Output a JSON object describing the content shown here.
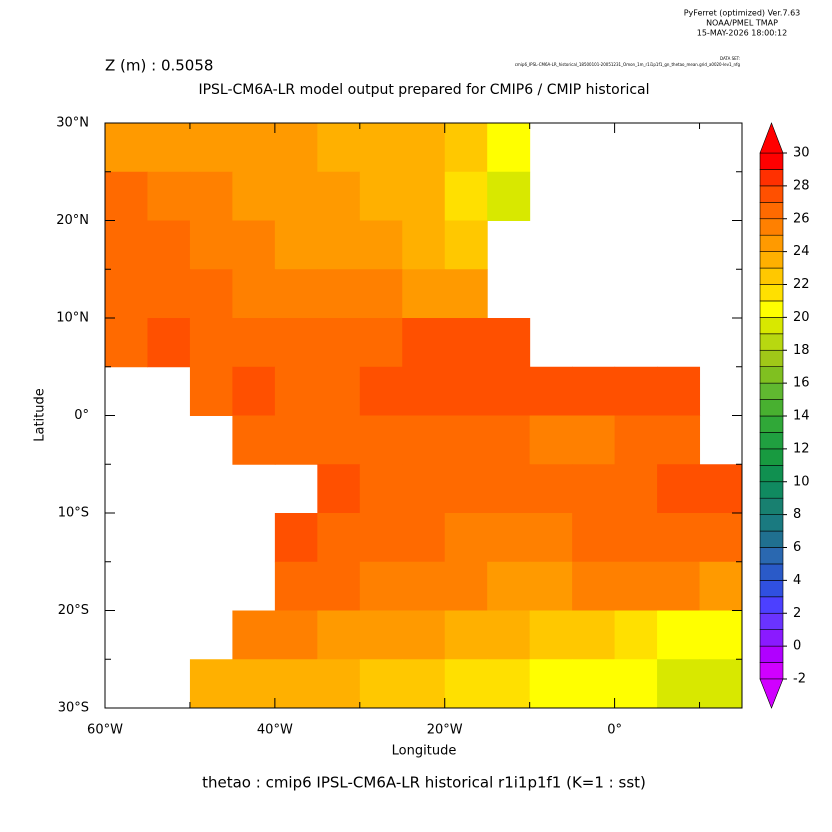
{
  "chart_data": {
    "type": "heatmap",
    "header": [
      "PyFerret (optimized) Ver.7.63",
      "NOAA/PMEL TMAP",
      "15-MAY-2026 18:00:12"
    ],
    "dataset_label": "DATA SET:",
    "dataset": "cmip6_IPSL-CM6A-LR_historical_18500101-20051231_Omon_1m_r1i1p1f1_gn_thetao_mean.grid_a0020-lev1_nfg",
    "depth_label": "Z (m) : 0.5058",
    "title": "IPSL-CM6A-LR model output prepared for CMIP6 / CMIP historical",
    "footer": "thetao : cmip6 IPSL-CM6A-LR historical r1i1p1f1   (K=1 : sst)",
    "x_label": "Longitude",
    "y_label": "Latitude",
    "xlim": [
      -60,
      15
    ],
    "ylim": [
      -30,
      30
    ],
    "xticks": [
      {
        "value": -60,
        "label": "60°W"
      },
      {
        "value": -40,
        "label": "40°W"
      },
      {
        "value": -20,
        "label": "20°W"
      },
      {
        "value": 0,
        "label": "0°"
      }
    ],
    "xminor": [
      -50,
      -30,
      -10,
      10
    ],
    "yticks": [
      {
        "value": 30,
        "label": "30°N"
      },
      {
        "value": 20,
        "label": "20°N"
      },
      {
        "value": 10,
        "label": "10°N"
      },
      {
        "value": 0,
        "label": "0°"
      },
      {
        "value": -10,
        "label": "10°S"
      },
      {
        "value": -20,
        "label": "20°S"
      },
      {
        "value": -30,
        "label": "30°S"
      }
    ],
    "yminor": [
      25,
      15,
      5,
      -5,
      -15,
      -25
    ],
    "lon_edges": [
      -60,
      -55,
      -50,
      -45,
      -40,
      -35,
      -30,
      -25,
      -20,
      -15,
      -10,
      -5,
      0,
      5,
      10,
      15
    ],
    "lat_edges": [
      30,
      25,
      20,
      15,
      10,
      5,
      0,
      -5,
      -10,
      -15,
      -20,
      -25,
      -30
    ],
    "values": [
      [
        24.5,
        24.5,
        24,
        24,
        24,
        23.5,
        23.5,
        23,
        22,
        20,
        null,
        null,
        null,
        null,
        null
      ],
      [
        26,
        25.5,
        25,
        24.5,
        24,
        24,
        23.5,
        23,
        21.5,
        19,
        null,
        null,
        null,
        null,
        null
      ],
      [
        26.5,
        26,
        25.5,
        25,
        24.5,
        24.5,
        24,
        23.5,
        22.5,
        null,
        null,
        null,
        null,
        null,
        null
      ],
      [
        26.5,
        26.5,
        26,
        25.5,
        25.5,
        25,
        25,
        24.5,
        24,
        null,
        null,
        null,
        null,
        null,
        null
      ],
      [
        26.5,
        27,
        26.5,
        26,
        26,
        26,
        26.5,
        27,
        27,
        27.5,
        null,
        null,
        null,
        null,
        null
      ],
      [
        null,
        null,
        26.5,
        27,
        26.5,
        26.5,
        27,
        27,
        27.5,
        27.5,
        27.5,
        27.5,
        27,
        27.5,
        null
      ],
      [
        null,
        null,
        null,
        26.5,
        26.5,
        26,
        26,
        26,
        26,
        26,
        25.5,
        25.5,
        26,
        26.5,
        null
      ],
      [
        null,
        null,
        null,
        null,
        null,
        27,
        26.5,
        26,
        26,
        26.5,
        26.5,
        26.5,
        26.5,
        27,
        27
      ],
      [
        null,
        null,
        null,
        null,
        27,
        26.5,
        26,
        26,
        25.5,
        25.5,
        25.5,
        26,
        26.5,
        26.5,
        26.5
      ],
      [
        null,
        null,
        null,
        null,
        26.5,
        26,
        25.5,
        25,
        25,
        24.5,
        24.5,
        25,
        25,
        25,
        24.5
      ],
      [
        null,
        null,
        null,
        25,
        25,
        24.5,
        24.5,
        24,
        23.5,
        23,
        22.5,
        22,
        21.5,
        20.5,
        20
      ],
      [
        null,
        null,
        23.5,
        23.5,
        23,
        23,
        22.5,
        22,
        21.5,
        21,
        20.5,
        20,
        20,
        19.5,
        19
      ]
    ],
    "colorbar": {
      "range": [
        -2,
        30
      ],
      "step": 1,
      "ticks": [
        30,
        28,
        26,
        24,
        22,
        20,
        18,
        16,
        14,
        12,
        10,
        8,
        6,
        4,
        2,
        0,
        -2
      ],
      "colors": [
        "#d000ff",
        "#b000ff",
        "#8a1aff",
        "#6a33ff",
        "#4c40ff",
        "#3050e0",
        "#2a5ac8",
        "#2a68b0",
        "#207090",
        "#1a7a80",
        "#188070",
        "#108a60",
        "#109050",
        "#189a40",
        "#20a040",
        "#30a838",
        "#48b030",
        "#60b830",
        "#80c020",
        "#a0c818",
        "#b8d810",
        "#d8e800",
        "#ffff00",
        "#ffe000",
        "#ffc800",
        "#ffb000",
        "#ff9a00",
        "#ff8000",
        "#ff6a00",
        "#ff5000",
        "#ff3000",
        "#ff0000"
      ],
      "over_color": "#ff0000",
      "under_color": "#d000ff"
    }
  }
}
